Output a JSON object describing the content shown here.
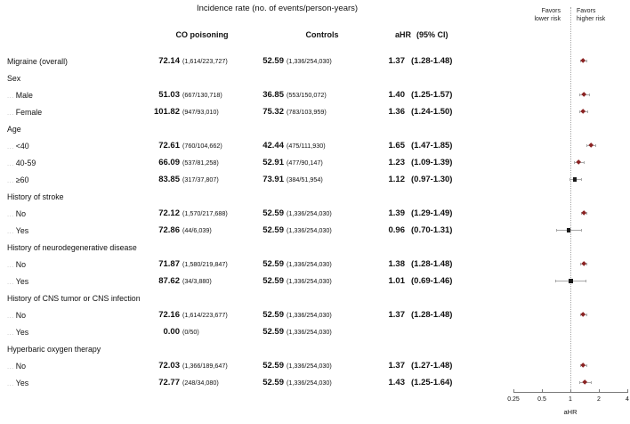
{
  "header": {
    "title": "Incidence rate (no. of events/person-years)",
    "col_co": "CO poisoning",
    "col_controls": "Controls",
    "col_ahr": "aHR",
    "col_ci": "(95% CI)"
  },
  "plot_labels": {
    "favors_left": "Favors\nlower risk",
    "favors_right": "Favors\nhigher risk",
    "axis_label": "aHR"
  },
  "colors": {
    "marker_significant": "#8b2323",
    "marker_nonsignificant": "#1a1a1a",
    "ci_line": "#a8a8a8",
    "reference_line": "#a6a6a6",
    "axis": "#7a7a7a",
    "dots_prefix": "#b3b3b3",
    "text": "#111111"
  },
  "chart_data": {
    "type": "scatter",
    "subtype": "forest-plot",
    "title": "Incidence rate (no. of events/person-years)",
    "xlabel": "aHR",
    "x_scale": "log2",
    "x_ticks": [
      "0.25",
      "0.5",
      "1",
      "2",
      "4"
    ],
    "x_range": [
      0.25,
      4
    ],
    "reference_line": 1,
    "annotations": [
      "Favors lower risk",
      "Favors higher risk"
    ],
    "rows": [
      {
        "kind": "item",
        "indent": false,
        "label": "Migraine (overall)",
        "co": "72.14",
        "co_n": "(1,614/223,727)",
        "controls": "52.59",
        "controls_n": "(1,336/254,030)",
        "ahr": "1.37",
        "ci": "(1.28-1.48)",
        "est": 1.37,
        "lo": 1.28,
        "hi": 1.48,
        "significant": true
      },
      {
        "kind": "group",
        "label": "Sex"
      },
      {
        "kind": "item",
        "indent": true,
        "label": "Male",
        "co": "51.03",
        "co_n": "(667/130,718)",
        "controls": "36.85",
        "controls_n": "(553/150,072)",
        "ahr": "1.40",
        "ci": "(1.25-1.57)",
        "est": 1.4,
        "lo": 1.25,
        "hi": 1.57,
        "significant": true
      },
      {
        "kind": "item",
        "indent": true,
        "label": "Female",
        "co": "101.82",
        "co_n": "(947/93,010)",
        "controls": "75.32",
        "controls_n": "(783/103,959)",
        "ahr": "1.36",
        "ci": "(1.24-1.50)",
        "est": 1.36,
        "lo": 1.24,
        "hi": 1.5,
        "significant": true
      },
      {
        "kind": "group",
        "label": "Age"
      },
      {
        "kind": "item",
        "indent": true,
        "label": "<40",
        "co": "72.61",
        "co_n": "(760/104,662)",
        "controls": "42.44",
        "controls_n": "(475/111,930)",
        "ahr": "1.65",
        "ci": "(1.47-1.85)",
        "est": 1.65,
        "lo": 1.47,
        "hi": 1.85,
        "significant": true
      },
      {
        "kind": "item",
        "indent": true,
        "label": "40-59",
        "co": "66.09",
        "co_n": "(537/81,258)",
        "controls": "52.91",
        "controls_n": "(477/90,147)",
        "ahr": "1.23",
        "ci": "(1.09-1.39)",
        "est": 1.23,
        "lo": 1.09,
        "hi": 1.39,
        "significant": true
      },
      {
        "kind": "item",
        "indent": true,
        "label": "≥60",
        "co": "83.85",
        "co_n": "(317/37,807)",
        "controls": "73.91",
        "controls_n": "(384/51,954)",
        "ahr": "1.12",
        "ci": "(0.97-1.30)",
        "est": 1.12,
        "lo": 0.97,
        "hi": 1.3,
        "significant": false
      },
      {
        "kind": "group",
        "label": "History of stroke"
      },
      {
        "kind": "item",
        "indent": true,
        "label": "No",
        "co": "72.12",
        "co_n": "(1,570/217,688)",
        "controls": "52.59",
        "controls_n": "(1,336/254,030)",
        "ahr": "1.39",
        "ci": "(1.29-1.49)",
        "est": 1.39,
        "lo": 1.29,
        "hi": 1.49,
        "significant": true
      },
      {
        "kind": "item",
        "indent": true,
        "label": "Yes",
        "co": "72.86",
        "co_n": "(44/6,039)",
        "controls": "52.59",
        "controls_n": "(1,336/254,030)",
        "ahr": "0.96",
        "ci": "(0.70-1.31)",
        "est": 0.96,
        "lo": 0.7,
        "hi": 1.31,
        "significant": false
      },
      {
        "kind": "group",
        "label": "History of neurodegenerative disease"
      },
      {
        "kind": "item",
        "indent": true,
        "label": "No",
        "co": "71.87",
        "co_n": "(1,580/219,847)",
        "controls": "52.59",
        "controls_n": "(1,336/254,030)",
        "ahr": "1.38",
        "ci": "(1.28-1.48)",
        "est": 1.38,
        "lo": 1.28,
        "hi": 1.48,
        "significant": true
      },
      {
        "kind": "item",
        "indent": true,
        "label": "Yes",
        "co": "87.62",
        "co_n": "(34/3,880)",
        "controls": "52.59",
        "controls_n": "(1,336/254,030)",
        "ahr": "1.01",
        "ci": "(0.69-1.46)",
        "est": 1.01,
        "lo": 0.69,
        "hi": 1.46,
        "significant": false
      },
      {
        "kind": "group",
        "label": "History of CNS tumor or CNS infection"
      },
      {
        "kind": "item",
        "indent": true,
        "label": "No",
        "co": "72.16",
        "co_n": "(1,614/223,677)",
        "controls": "52.59",
        "controls_n": "(1,336/254,030)",
        "ahr": "1.37",
        "ci": "(1.28-1.48)",
        "est": 1.37,
        "lo": 1.28,
        "hi": 1.48,
        "significant": true
      },
      {
        "kind": "item",
        "indent": true,
        "label": "Yes",
        "co": "0.00",
        "co_n": "(0/50)",
        "controls": "52.59",
        "controls_n": "(1,336/254,030)",
        "ahr": "",
        "ci": "",
        "est": null,
        "lo": null,
        "hi": null,
        "significant": false
      },
      {
        "kind": "group",
        "label": "Hyperbaric oxygen therapy"
      },
      {
        "kind": "item",
        "indent": true,
        "label": "No",
        "co": "72.03",
        "co_n": "(1,366/189,647)",
        "controls": "52.59",
        "controls_n": "(1,336/254,030)",
        "ahr": "1.37",
        "ci": "(1.27-1.48)",
        "est": 1.37,
        "lo": 1.27,
        "hi": 1.48,
        "significant": true
      },
      {
        "kind": "item",
        "indent": true,
        "label": "Yes",
        "co": "72.77",
        "co_n": "(248/34,080)",
        "controls": "52.59",
        "controls_n": "(1,336/254,030)",
        "ahr": "1.43",
        "ci": "(1.25-1.64)",
        "est": 1.43,
        "lo": 1.25,
        "hi": 1.64,
        "significant": true
      }
    ]
  }
}
